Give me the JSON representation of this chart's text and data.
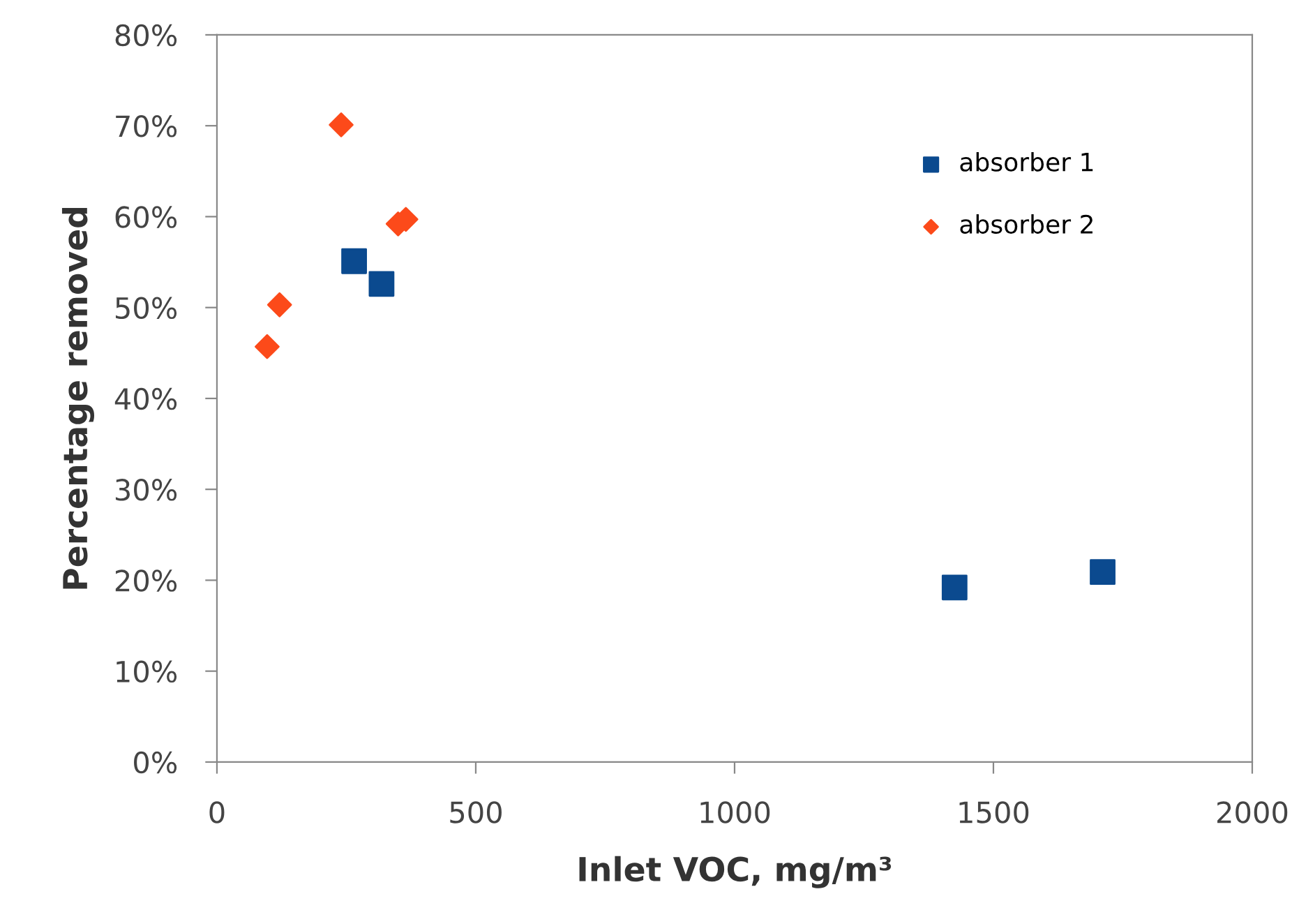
{
  "chart_data": {
    "type": "scatter",
    "xlabel": "Inlet VOC, mg/m³",
    "ylabel": "Percentage removed",
    "xlim": [
      0,
      2000
    ],
    "xticks": [
      0,
      500,
      1000,
      1500,
      2000
    ],
    "ylim": [
      0,
      0.8
    ],
    "yticks": [
      {
        "value": 0,
        "label": "0%"
      },
      {
        "value": 0.1,
        "label": "10%"
      },
      {
        "value": 0.2,
        "label": "20%"
      },
      {
        "value": 0.3,
        "label": "30%"
      },
      {
        "value": 0.4,
        "label": "40%"
      },
      {
        "value": 0.5,
        "label": "50%"
      },
      {
        "value": 0.6,
        "label": "60%"
      },
      {
        "value": 0.7,
        "label": "70%"
      },
      {
        "value": 0.8,
        "label": "80%"
      }
    ],
    "grid": false,
    "legend": "top right",
    "series": [
      {
        "name": "absorber 1",
        "color": "#0b4a8f",
        "marker": "square",
        "x": [
          265,
          318,
          1425,
          1711
        ],
        "values": [
          0.551,
          0.526,
          0.192,
          0.209
        ]
      },
      {
        "name": "absorber 2",
        "color": "#fc4a1a",
        "marker": "diamond",
        "x": [
          97,
          121,
          240,
          350,
          365
        ],
        "values": [
          0.457,
          0.503,
          0.701,
          0.592,
          0.597
        ]
      }
    ]
  }
}
